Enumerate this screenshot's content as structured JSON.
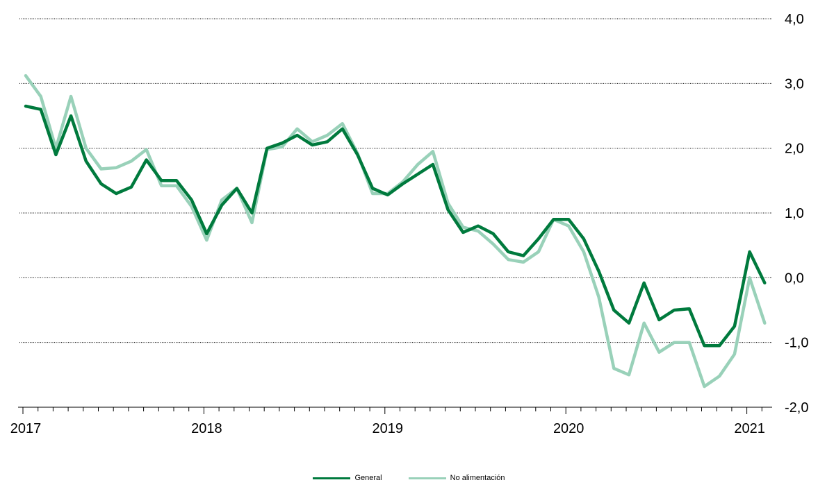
{
  "chart_data": {
    "type": "line",
    "ylim": [
      -2.0,
      4.0
    ],
    "yticks": [
      "4,0",
      "3,0",
      "2,0",
      "1,0",
      "0,0",
      "-1,0",
      "-2,0"
    ],
    "ytick_values": [
      4,
      3,
      2,
      1,
      0,
      -1,
      -2
    ],
    "year_labels": [
      "2017",
      "2018",
      "2019",
      "2020",
      "2021"
    ],
    "year_start_index": [
      0,
      12,
      24,
      36,
      48
    ],
    "grid": "horizontal dotted",
    "legend_position": "bottom",
    "series": [
      {
        "name": "General",
        "color": "#007a3d",
        "values": [
          2.65,
          2.6,
          1.9,
          2.5,
          1.8,
          1.45,
          1.3,
          1.4,
          1.82,
          1.5,
          1.5,
          1.2,
          0.68,
          1.12,
          1.38,
          1.0,
          2.0,
          2.08,
          2.2,
          2.05,
          2.1,
          2.3,
          1.9,
          1.38,
          1.28,
          1.45,
          1.6,
          1.75,
          1.05,
          0.7,
          0.8,
          0.68,
          0.4,
          0.34,
          0.6,
          0.9,
          0.9,
          0.6,
          0.1,
          -0.5,
          -0.7,
          -0.08,
          -0.65,
          -0.5,
          -0.48,
          -1.05,
          -1.05,
          -0.75,
          0.4,
          -0.08
        ]
      },
      {
        "name": "No alimentación",
        "color": "#99d1b9",
        "values": [
          3.12,
          2.8,
          2.0,
          2.8,
          2.0,
          1.68,
          1.7,
          1.8,
          1.98,
          1.42,
          1.42,
          1.1,
          0.58,
          1.2,
          1.38,
          0.85,
          1.98,
          2.02,
          2.3,
          2.1,
          2.2,
          2.38,
          1.92,
          1.3,
          1.3,
          1.48,
          1.75,
          1.95,
          1.15,
          0.78,
          0.72,
          0.52,
          0.28,
          0.24,
          0.4,
          0.9,
          0.8,
          0.4,
          -0.3,
          -1.4,
          -1.5,
          -0.7,
          -1.15,
          -1.0,
          -1.0,
          -1.68,
          -1.52,
          -1.18,
          0.0,
          -0.7
        ]
      }
    ]
  }
}
